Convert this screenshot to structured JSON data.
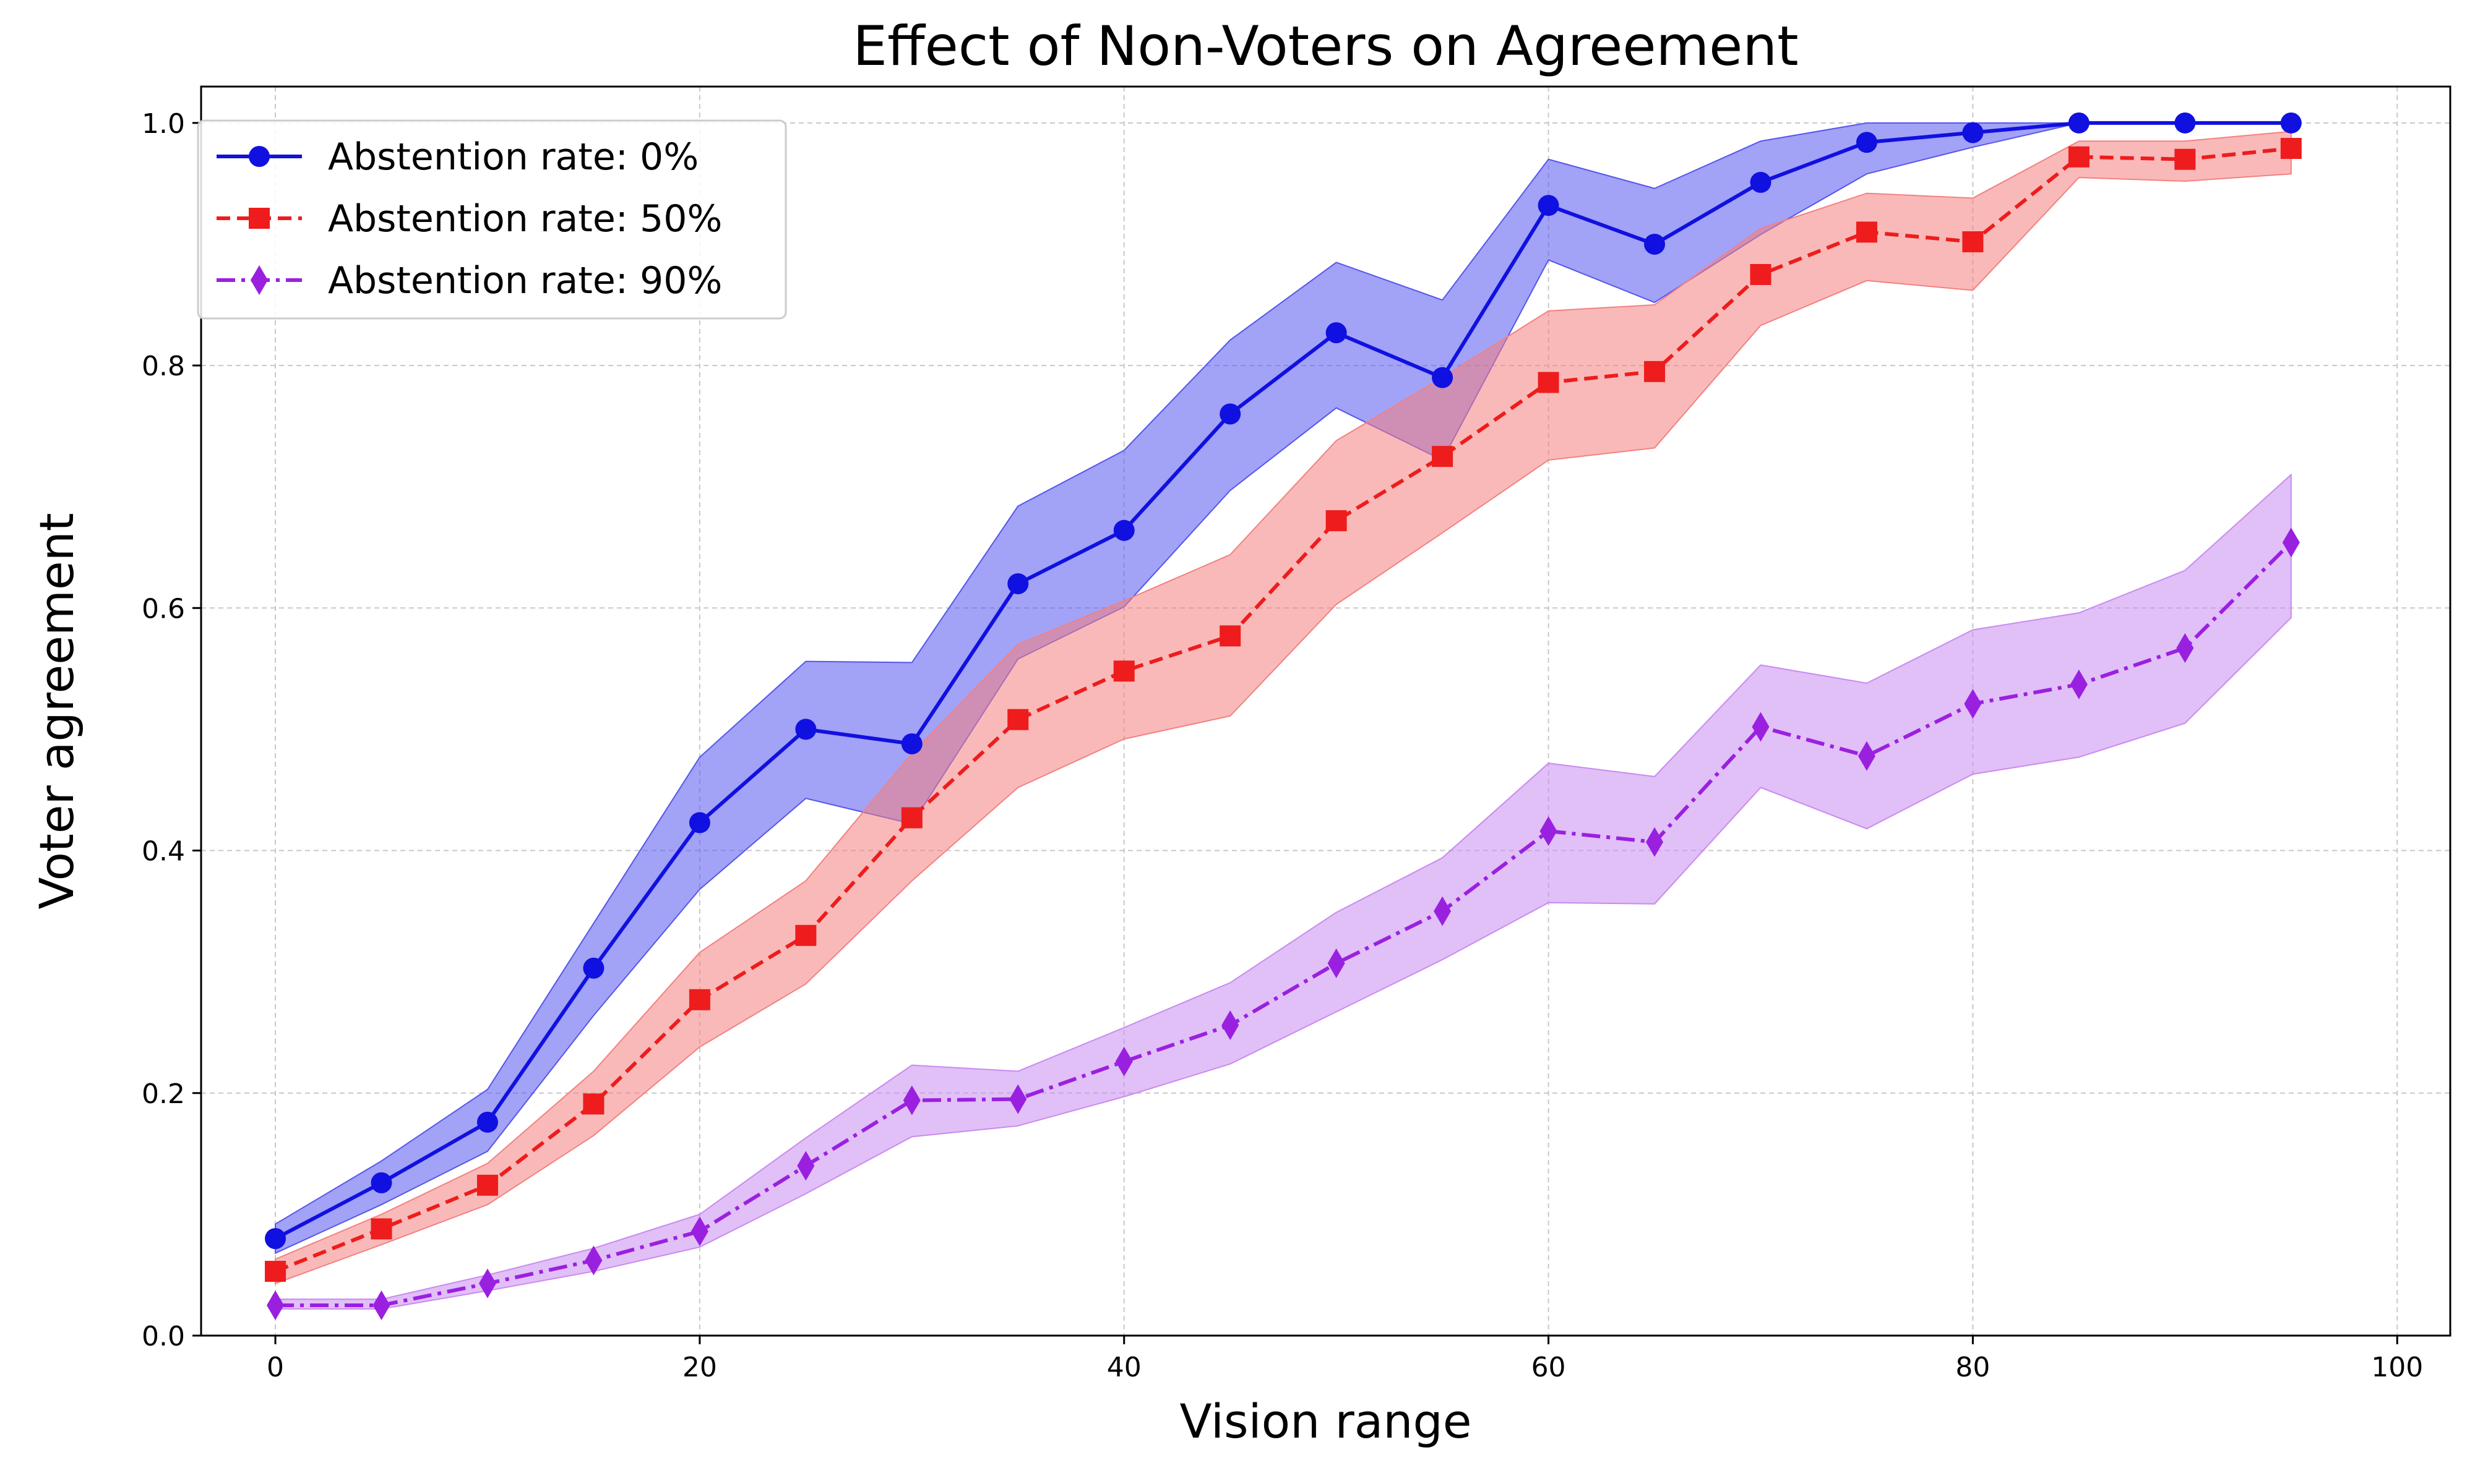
{
  "chart_data": {
    "type": "line",
    "title": "Effect of Non-Voters on Agreement",
    "xlabel": "Vision range",
    "ylabel": "Voter agreement",
    "xlim": [
      -3.5,
      102.5
    ],
    "ylim": [
      0.0,
      1.03
    ],
    "xticks": [
      0,
      20,
      40,
      60,
      80,
      100
    ],
    "yticks": [
      0.0,
      0.2,
      0.4,
      0.6,
      0.8,
      1.0
    ],
    "grid": true,
    "legend_position": "top-left",
    "x": [
      0,
      5,
      10,
      15,
      20,
      25,
      30,
      35,
      40,
      45,
      50,
      55,
      60,
      65,
      70,
      75,
      80,
      85,
      90,
      95
    ],
    "series": [
      {
        "name": "Abstention rate: 0%",
        "color": "#1010e0",
        "band_color": "#5555ee",
        "line_style": "solid",
        "marker": "circle",
        "values": [
          0.08,
          0.126,
          0.176,
          0.303,
          0.423,
          0.5,
          0.488,
          0.62,
          0.664,
          0.76,
          0.827,
          0.79,
          0.932,
          0.9,
          0.951,
          0.984,
          0.992,
          1.0,
          1.0,
          1.0
        ],
        "lower": [
          0.068,
          0.108,
          0.152,
          0.264,
          0.368,
          0.443,
          0.422,
          0.558,
          0.601,
          0.697,
          0.765,
          0.722,
          0.887,
          0.852,
          0.908,
          0.958,
          0.98,
          1.0,
          1.0,
          1.0
        ],
        "upper": [
          0.092,
          0.144,
          0.203,
          0.34,
          0.477,
          0.556,
          0.555,
          0.684,
          0.73,
          0.821,
          0.885,
          0.854,
          0.97,
          0.946,
          0.985,
          1.0,
          1.0,
          1.0,
          1.0,
          1.0
        ]
      },
      {
        "name": "Abstention rate: 50%",
        "color": "#ee1c1c",
        "band_color": "#f48080",
        "line_style": "dashed",
        "marker": "square",
        "values": [
          0.053,
          0.088,
          0.124,
          0.191,
          0.277,
          0.33,
          0.427,
          0.508,
          0.548,
          0.577,
          0.672,
          0.725,
          0.786,
          0.795,
          0.875,
          0.91,
          0.902,
          0.972,
          0.97,
          0.979
        ],
        "lower": [
          0.043,
          0.075,
          0.108,
          0.165,
          0.238,
          0.29,
          0.375,
          0.452,
          0.492,
          0.511,
          0.603,
          0.662,
          0.722,
          0.732,
          0.833,
          0.87,
          0.862,
          0.955,
          0.952,
          0.958
        ],
        "upper": [
          0.063,
          0.1,
          0.142,
          0.218,
          0.316,
          0.375,
          0.48,
          0.57,
          0.606,
          0.644,
          0.738,
          0.79,
          0.845,
          0.85,
          0.913,
          0.942,
          0.938,
          0.985,
          0.985,
          0.993
        ]
      },
      {
        "name": "Abstention rate: 90%",
        "color": "#9a20e0",
        "band_color": "#c98af0",
        "line_style": "dashdot",
        "marker": "diamond",
        "values": [
          0.025,
          0.025,
          0.043,
          0.062,
          0.086,
          0.14,
          0.194,
          0.195,
          0.226,
          0.256,
          0.307,
          0.35,
          0.416,
          0.407,
          0.502,
          0.478,
          0.521,
          0.537,
          0.567,
          0.654
        ],
        "lower": [
          0.022,
          0.022,
          0.037,
          0.053,
          0.073,
          0.117,
          0.164,
          0.173,
          0.197,
          0.224,
          0.267,
          0.31,
          0.357,
          0.356,
          0.452,
          0.418,
          0.463,
          0.477,
          0.505,
          0.592
        ],
        "upper": [
          0.03,
          0.03,
          0.05,
          0.072,
          0.1,
          0.163,
          0.223,
          0.218,
          0.254,
          0.291,
          0.349,
          0.394,
          0.472,
          0.461,
          0.553,
          0.538,
          0.582,
          0.596,
          0.631,
          0.71
        ]
      }
    ]
  }
}
